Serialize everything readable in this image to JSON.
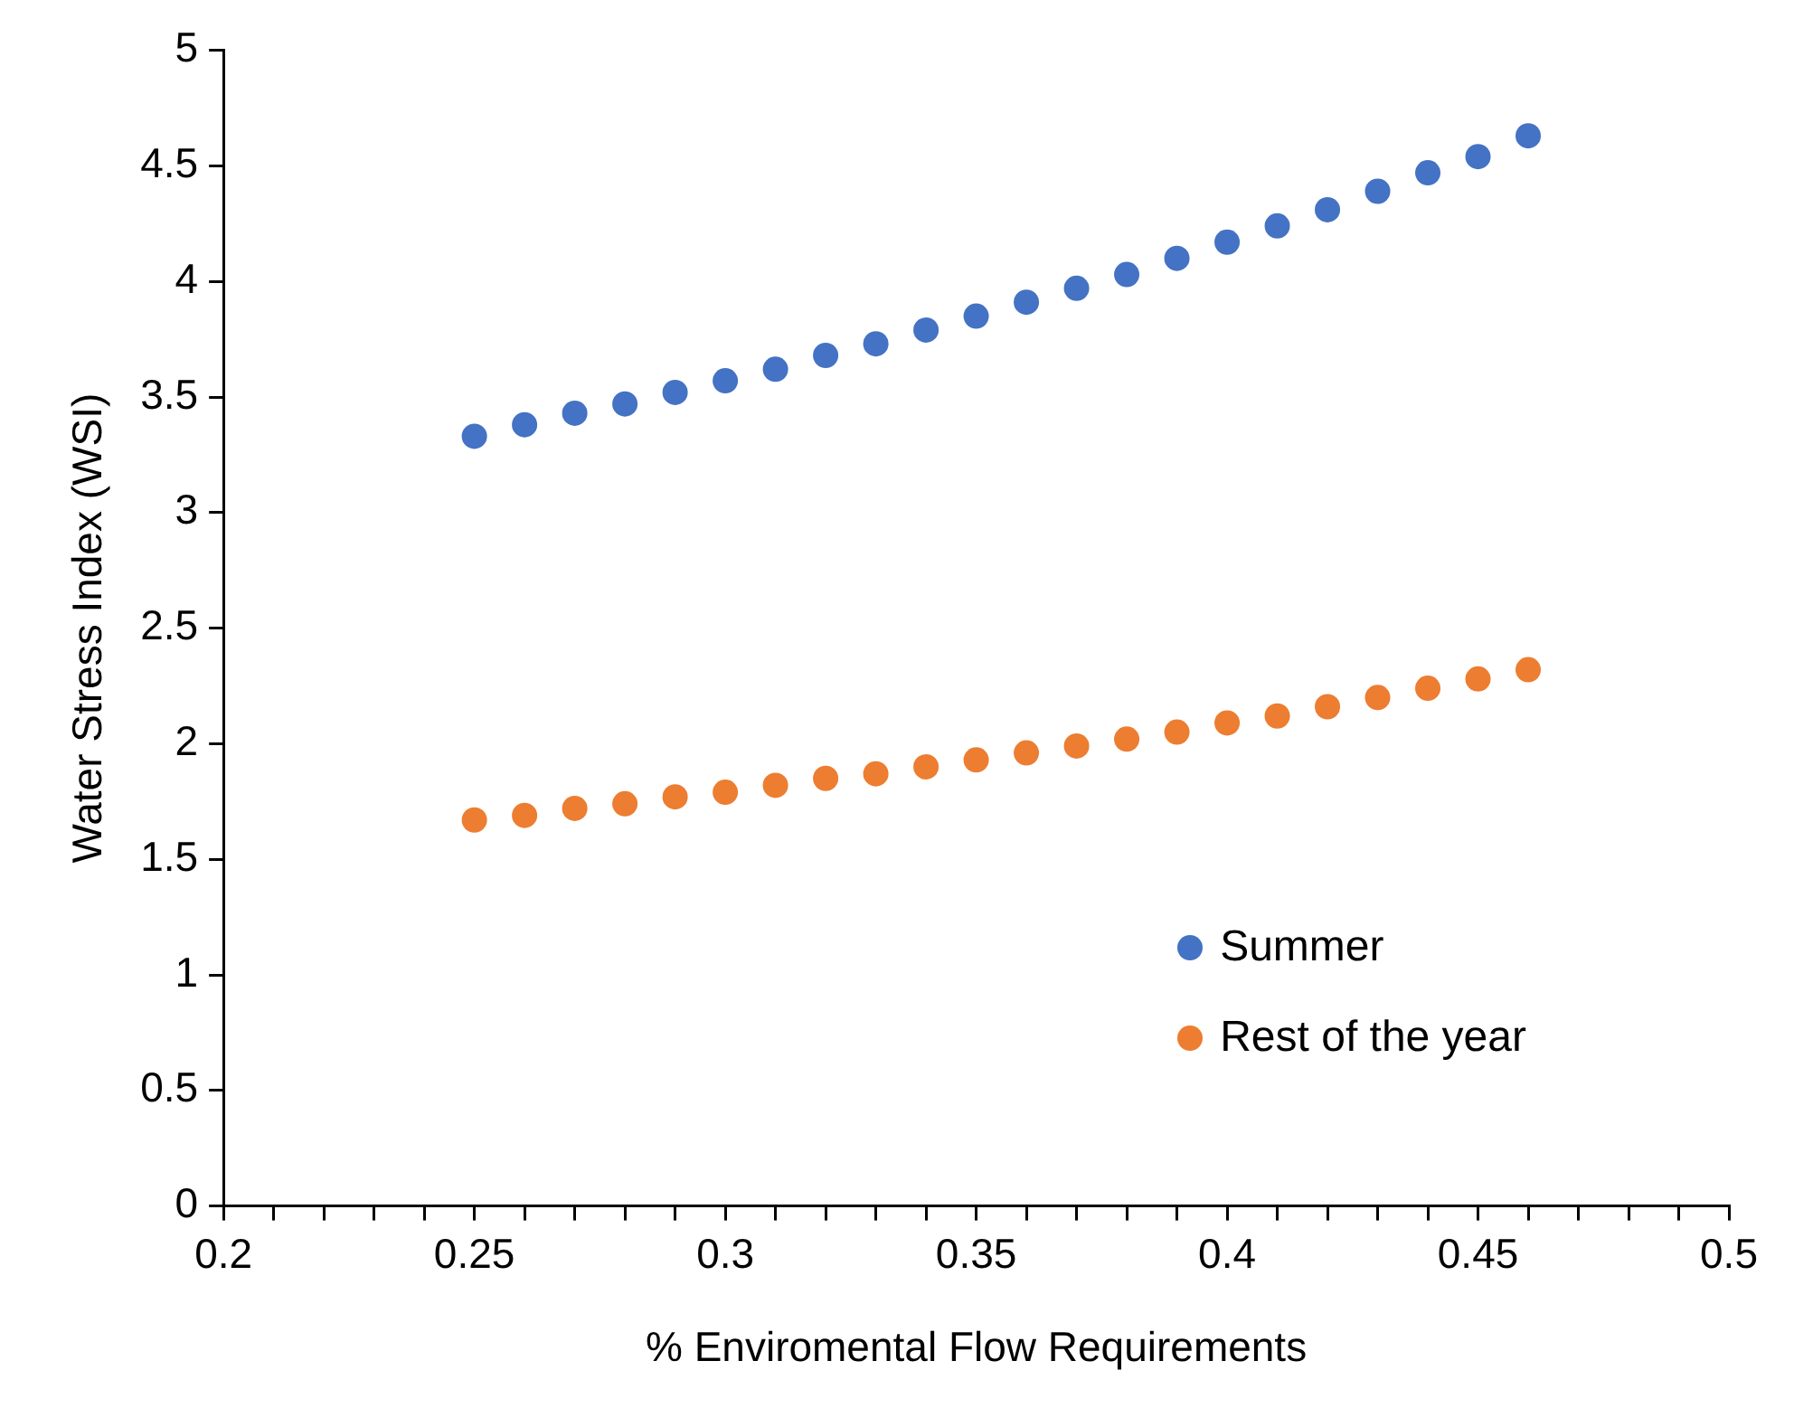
{
  "chart_data": {
    "type": "scatter",
    "xlabel": "% Enviromental Flow Requirements",
    "ylabel": "Water Stress Index (WSI)",
    "xlim": [
      0.2,
      0.5
    ],
    "ylim": [
      0,
      5
    ],
    "xticks": [
      0.2,
      {
        "value": 0.21,
        "label": null
      },
      {
        "value": 0.22,
        "label": null
      },
      {
        "value": 0.23,
        "label": null
      },
      {
        "value": 0.24,
        "label": null
      },
      0.25,
      {
        "value": 0.26,
        "label": null
      },
      {
        "value": 0.27,
        "label": null
      },
      {
        "value": 0.28,
        "label": null
      },
      {
        "value": 0.29,
        "label": null
      },
      0.3,
      {
        "value": 0.31,
        "label": null
      },
      {
        "value": 0.32,
        "label": null
      },
      {
        "value": 0.33,
        "label": null
      },
      {
        "value": 0.34,
        "label": null
      },
      0.35,
      {
        "value": 0.36,
        "label": null
      },
      {
        "value": 0.37,
        "label": null
      },
      {
        "value": 0.38,
        "label": null
      },
      {
        "value": 0.39,
        "label": null
      },
      0.4,
      {
        "value": 0.41,
        "label": null
      },
      {
        "value": 0.42,
        "label": null
      },
      {
        "value": 0.43,
        "label": null
      },
      {
        "value": 0.44,
        "label": null
      },
      0.45,
      {
        "value": 0.46,
        "label": null
      },
      {
        "value": 0.47,
        "label": null
      },
      {
        "value": 0.48,
        "label": null
      },
      {
        "value": 0.49,
        "label": null
      },
      0.5
    ],
    "yticks": [
      0,
      0.5,
      1,
      1.5,
      2,
      2.5,
      3,
      3.5,
      4,
      4.5,
      5
    ],
    "x": [
      0.25,
      0.26,
      0.27,
      0.28,
      0.29,
      0.3,
      0.31,
      0.32,
      0.33,
      0.34,
      0.35,
      0.36,
      0.37,
      0.38,
      0.39,
      0.4,
      0.41,
      0.42,
      0.43,
      0.44,
      0.45,
      0.46
    ],
    "series": [
      {
        "name": "Summer",
        "color": "#4472c4",
        "values": [
          3.33,
          3.38,
          3.43,
          3.47,
          3.52,
          3.57,
          3.62,
          3.68,
          3.73,
          3.79,
          3.85,
          3.91,
          3.97,
          4.03,
          4.1,
          4.17,
          4.24,
          4.31,
          4.39,
          4.47,
          4.54,
          4.63
        ]
      },
      {
        "name": "Rest of the year",
        "color": "#ed7d31",
        "values": [
          1.67,
          1.69,
          1.72,
          1.74,
          1.77,
          1.79,
          1.82,
          1.85,
          1.87,
          1.9,
          1.93,
          1.96,
          1.99,
          2.02,
          2.05,
          2.09,
          2.12,
          2.16,
          2.2,
          2.24,
          2.28,
          2.32
        ]
      }
    ],
    "marker": "circle",
    "grid": false,
    "legend": "bottom right"
  }
}
